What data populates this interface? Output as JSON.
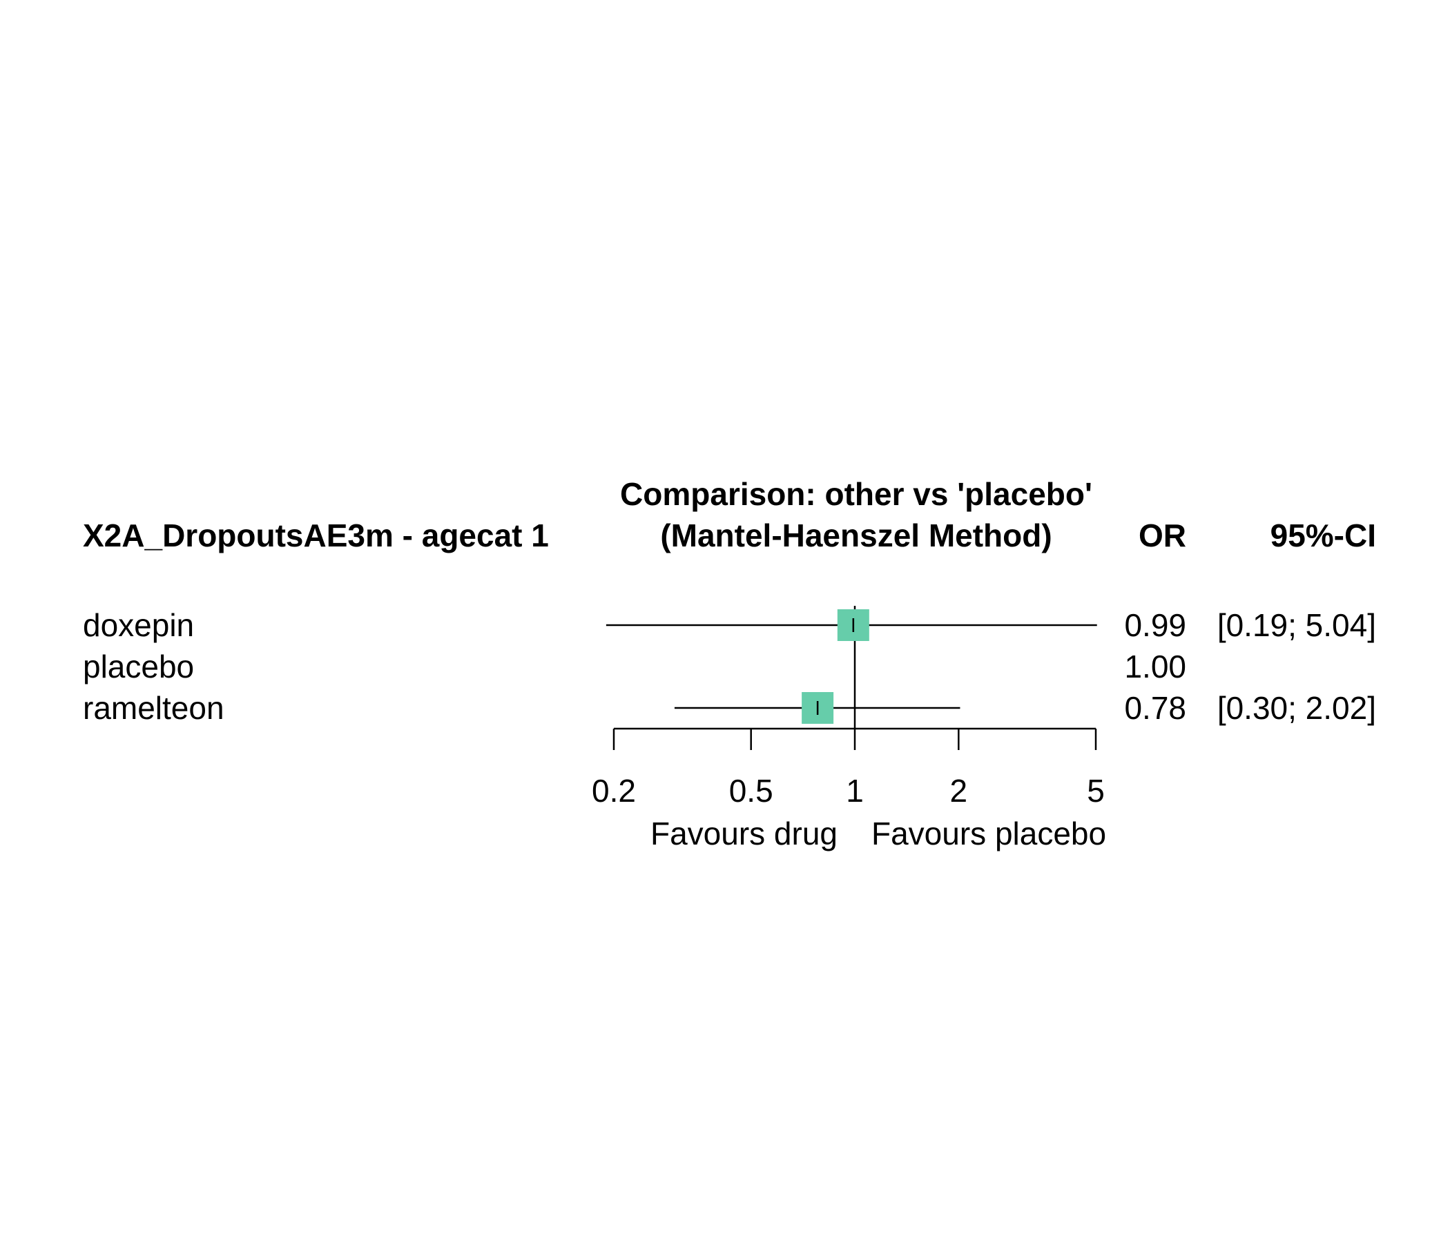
{
  "chart_data": {
    "type": "forest",
    "headers": {
      "study_label": "X2A_DropoutsAE3m - agecat 1",
      "comparison": "Comparison: other vs 'placebo'",
      "method": "(Mantel-Haenszel Method)",
      "effect": "OR",
      "ci": "95%-CI"
    },
    "rows": [
      {
        "label": "doxepin",
        "or": 0.99,
        "lower": 0.19,
        "upper": 5.04,
        "or_text": "0.99",
        "ci_text": "[0.19; 5.04]",
        "weighted": true
      },
      {
        "label": "placebo",
        "or": 1.0,
        "or_text": "1.00",
        "ci_text": "",
        "weighted": false
      },
      {
        "label": "ramelteon",
        "or": 0.78,
        "lower": 0.3,
        "upper": 2.02,
        "or_text": "0.78",
        "ci_text": "[0.30; 2.02]",
        "weighted": true
      }
    ],
    "x_axis": {
      "scale": "log",
      "ticks": [
        0.2,
        0.5,
        1,
        2,
        5
      ],
      "tick_labels": [
        "0.2",
        "0.5",
        "1",
        "2",
        "5"
      ],
      "range": [
        0.2,
        5
      ],
      "reference_line": 1
    },
    "favours_left": "Favours drug",
    "favours_right": "Favours placebo",
    "colors": {
      "box": "#66CDAA",
      "line": "#000000"
    }
  }
}
